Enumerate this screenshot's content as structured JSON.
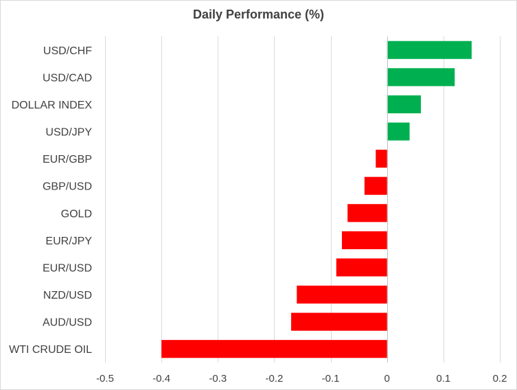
{
  "colors": {
    "positive": "#00b050",
    "negative": "#ff0000",
    "grid": "#d9d9d9",
    "axis": "#bfbfbf"
  },
  "chart_data": {
    "type": "bar",
    "orientation": "horizontal",
    "title": "Daily Performance (%)",
    "xlabel": "",
    "ylabel": "",
    "xlim": [
      -0.5,
      0.2
    ],
    "xticks": [
      -0.5,
      -0.4,
      -0.3,
      -0.2,
      -0.1,
      0,
      0.1,
      0.2
    ],
    "tick_labels": [
      "-0.5",
      "-0.4",
      "-0.3",
      "-0.2",
      "-0.1",
      "0",
      "0.1",
      "0.2"
    ],
    "grid": true,
    "legend": "none",
    "categories": [
      "USD/CHF",
      "USD/CAD",
      "DOLLAR INDEX",
      "USD/JPY",
      "EUR/GBP",
      "GBP/USD",
      "GOLD",
      "EUR/JPY",
      "EUR/USD",
      "NZD/USD",
      "AUD/USD",
      "WTI CRUDE OIL"
    ],
    "values": [
      0.15,
      0.12,
      0.06,
      0.04,
      -0.02,
      -0.04,
      -0.07,
      -0.08,
      -0.09,
      -0.16,
      -0.17,
      -0.4
    ]
  }
}
